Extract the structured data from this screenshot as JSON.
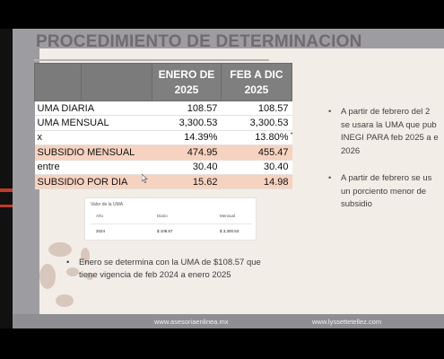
{
  "slide": {
    "title": "PROCEDIMIENTO DE DETERMINACION",
    "table": {
      "headers": [
        "",
        "",
        "ENERO DE 2025",
        "FEB A DIC 2025"
      ],
      "rows": [
        {
          "label": "UMA DIARIA",
          "enero": "108.57",
          "feb_dic": "108.57",
          "style": "white"
        },
        {
          "label": "UMA MENSUAL",
          "enero": "3,300.53",
          "feb_dic": "3,300.53",
          "style": "white"
        },
        {
          "label": "x",
          "enero": "14.39%",
          "feb_dic": "13.80%",
          "style": "white"
        },
        {
          "label": "SUBSIDIO MENSUAL",
          "enero": "474.95",
          "feb_dic": "455.47",
          "style": "peach"
        },
        {
          "label": "entre",
          "enero": "30.40",
          "feb_dic": "30.40",
          "style": "white"
        },
        {
          "label": "SUBSIDIO POR DIA",
          "enero": "15.62",
          "feb_dic": "14.98",
          "style": "peach"
        }
      ]
    },
    "uma_snippet": {
      "caption": "Valor de la UMA",
      "col_year": "Año",
      "col_daily": "Diario",
      "col_monthly": "Mensual",
      "year": "2024",
      "daily": "$ 108.57",
      "monthly": "$ 3,300.53"
    },
    "bullets_right": [
      {
        "lines": [
          "A partir de febrero del 2",
          "se usara la UMA que pub",
          "INEGI PARA feb 2025 a e",
          "2026"
        ]
      },
      {
        "lines": [
          "A partir de febrero se us",
          "un porciento menor de",
          "subsidio"
        ]
      }
    ],
    "note_lines": [
      "Enero se determina con la UMA de $108.57 que",
      "tiene vigencia de feb 2024 a enero 2025"
    ],
    "footer_left": "www.asesoriaenlinea.mx",
    "footer_right": "www.lyssettetellez.com"
  },
  "colors": {
    "slide_bg": "#9d9ca0",
    "panel": "#f3ede8",
    "header_gray": "#7f7f7f",
    "peach_row": "#f6d2c0",
    "title": "#6f6b70"
  }
}
